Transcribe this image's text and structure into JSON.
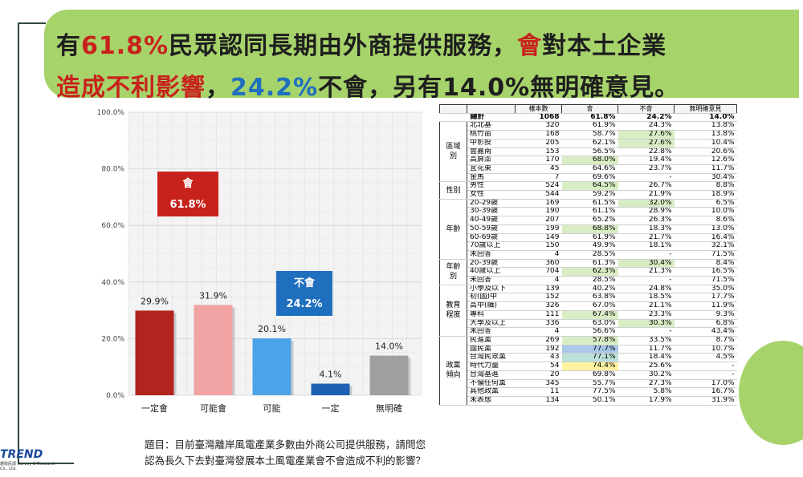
{
  "headline": {
    "l1_a": "有",
    "l1_pct": "61.8%",
    "l1_b": "民眾認同長期由外商提供服務，",
    "l1_c": "會",
    "l1_d": "對本土企業",
    "l2_a": "造成不利影響",
    "l2_b": "，",
    "l2_pct": "24.2%",
    "l2_c": "不會，另有14.0%無明確意見。"
  },
  "chart_data": {
    "type": "bar",
    "categories": [
      "一定會",
      "可能會",
      "可能\n不會",
      "一定\n不會",
      "無明確\n意見"
    ],
    "values": [
      29.9,
      31.9,
      20.1,
      4.1,
      14.0
    ],
    "value_labels": [
      "29.9%",
      "31.9%",
      "20.1%",
      "4.1%",
      "14.0%"
    ],
    "colors": [
      "#b3241e",
      "#f2a3a3",
      "#4da3e8",
      "#1f5fb4",
      "#a0a0a0"
    ],
    "ylim": [
      0,
      100
    ],
    "yticks": [
      "0.0%",
      "20.0%",
      "40.0%",
      "60.0%",
      "80.0%",
      "100.0%"
    ],
    "annotations": [
      {
        "label": "會",
        "value": "61.8%",
        "color": "#c8221c"
      },
      {
        "label": "不會",
        "value": "24.2%",
        "color": "#1f6fbf"
      }
    ],
    "grid": true
  },
  "question": {
    "line1": "題目：目前臺灣離岸風電產業多數由外商公司提供服務，請問您",
    "line2": "認為長久下去對臺灣發展本土風電產業會不會造成不利的影響？"
  },
  "logo": {
    "name": "TREND",
    "sub": "趨勢民調 Survey & Research Co., Ltd."
  },
  "table": {
    "headers": [
      "",
      "",
      "樣本數",
      "會",
      "不會",
      "無明確意見"
    ],
    "total": {
      "label": "總計",
      "n": "1068",
      "yes": "61.8%",
      "no": "24.2%",
      "na": "14.0%"
    },
    "groups": [
      {
        "name": "區域\n別",
        "rows": [
          {
            "label": "北北基",
            "n": "320",
            "yes": "61.9%",
            "no": "24.3%",
            "na": "13.8%"
          },
          {
            "label": "桃竹苗",
            "n": "168",
            "yes": "58.7%",
            "no": "27.6%",
            "na": "13.8%",
            "hl": "no"
          },
          {
            "label": "中彰投",
            "n": "205",
            "yes": "62.1%",
            "no": "27.6%",
            "na": "10.4%",
            "hl": "no"
          },
          {
            "label": "雲嘉南",
            "n": "153",
            "yes": "56.5%",
            "no": "22.8%",
            "na": "20.6%"
          },
          {
            "label": "高屏澎",
            "n": "170",
            "yes": "68.0%",
            "no": "19.4%",
            "na": "12.6%",
            "hl": "yes"
          },
          {
            "label": "宜花東",
            "n": "45",
            "yes": "64.6%",
            "no": "23.7%",
            "na": "11.7%"
          },
          {
            "label": "金馬",
            "n": "7",
            "yes": "69.6%",
            "no": "-",
            "na": "30.4%"
          }
        ]
      },
      {
        "name": "性別",
        "rows": [
          {
            "label": "男性",
            "n": "524",
            "yes": "64.5%",
            "no": "26.7%",
            "na": "8.8%",
            "hl": "yes"
          },
          {
            "label": "女性",
            "n": "544",
            "yes": "59.2%",
            "no": "21.9%",
            "na": "18.9%"
          }
        ]
      },
      {
        "name": "年齡",
        "rows": [
          {
            "label": "20-29歲",
            "n": "169",
            "yes": "61.5%",
            "no": "32.0%",
            "na": "6.5%",
            "hl": "no"
          },
          {
            "label": "30-39歲",
            "n": "190",
            "yes": "61.1%",
            "no": "28.9%",
            "na": "10.0%"
          },
          {
            "label": "40-49歲",
            "n": "207",
            "yes": "65.2%",
            "no": "26.3%",
            "na": "8.6%"
          },
          {
            "label": "50-59歲",
            "n": "199",
            "yes": "68.8%",
            "no": "18.3%",
            "na": "13.0%",
            "hl": "yes"
          },
          {
            "label": "60-69歲",
            "n": "149",
            "yes": "61.9%",
            "no": "21.7%",
            "na": "16.4%"
          },
          {
            "label": "70歲以上",
            "n": "150",
            "yes": "49.9%",
            "no": "18.1%",
            "na": "32.1%"
          },
          {
            "label": "未回答",
            "n": "4",
            "yes": "28.5%",
            "no": "-",
            "na": "71.5%"
          }
        ]
      },
      {
        "name": "年齡\n別",
        "rows": [
          {
            "label": "20-39歲",
            "n": "360",
            "yes": "61.3%",
            "no": "30.4%",
            "na": "8.4%",
            "hl": "no"
          },
          {
            "label": "40歲以上",
            "n": "704",
            "yes": "62.3%",
            "no": "21.3%",
            "na": "16.5%",
            "hl": "yes"
          },
          {
            "label": "未回答",
            "n": "4",
            "yes": "28.5%",
            "no": "-",
            "na": "71.5%"
          }
        ]
      },
      {
        "name": "教育\n程度",
        "rows": [
          {
            "label": "小學及以下",
            "n": "139",
            "yes": "40.2%",
            "no": "24.8%",
            "na": "35.0%"
          },
          {
            "label": "初(國)中",
            "n": "152",
            "yes": "63.8%",
            "no": "18.5%",
            "na": "17.7%"
          },
          {
            "label": "高中(職)",
            "n": "326",
            "yes": "67.0%",
            "no": "21.1%",
            "na": "11.9%"
          },
          {
            "label": "專科",
            "n": "111",
            "yes": "67.4%",
            "no": "23.3%",
            "na": "9.3%",
            "hl": "yes"
          },
          {
            "label": "大學及以上",
            "n": "336",
            "yes": "63.0%",
            "no": "30.3%",
            "na": "6.8%",
            "hl": "no"
          },
          {
            "label": "未回答",
            "n": "4",
            "yes": "56.6%",
            "no": "-",
            "na": "43.4%"
          }
        ]
      },
      {
        "name": "政黨\n傾向",
        "rows": [
          {
            "label": "民進黨",
            "n": "269",
            "yes": "57.8%",
            "no": "33.5%",
            "na": "8.7%",
            "hl": "yes"
          },
          {
            "label": "國民黨",
            "n": "192",
            "yes": "77.7%",
            "no": "11.7%",
            "na": "10.7%",
            "hl": "yes-blue"
          },
          {
            "label": "台灣民眾黨",
            "n": "43",
            "yes": "77.1%",
            "no": "18.4%",
            "na": "4.5%",
            "hl": "yes-teal"
          },
          {
            "label": "時代力量",
            "n": "54",
            "yes": "74.4%",
            "no": "25.6%",
            "na": "-",
            "hl": "yes-yellow"
          },
          {
            "label": "台灣基進",
            "n": "20",
            "yes": "69.8%",
            "no": "30.2%",
            "na": "-"
          },
          {
            "label": "不偏任何黨",
            "n": "345",
            "yes": "55.7%",
            "no": "27.3%",
            "na": "17.0%"
          },
          {
            "label": "其他政黨",
            "n": "11",
            "yes": "77.5%",
            "no": "5.8%",
            "na": "16.7%"
          },
          {
            "label": "未表態",
            "n": "134",
            "yes": "50.1%",
            "no": "17.9%",
            "na": "31.9%"
          }
        ]
      }
    ]
  }
}
